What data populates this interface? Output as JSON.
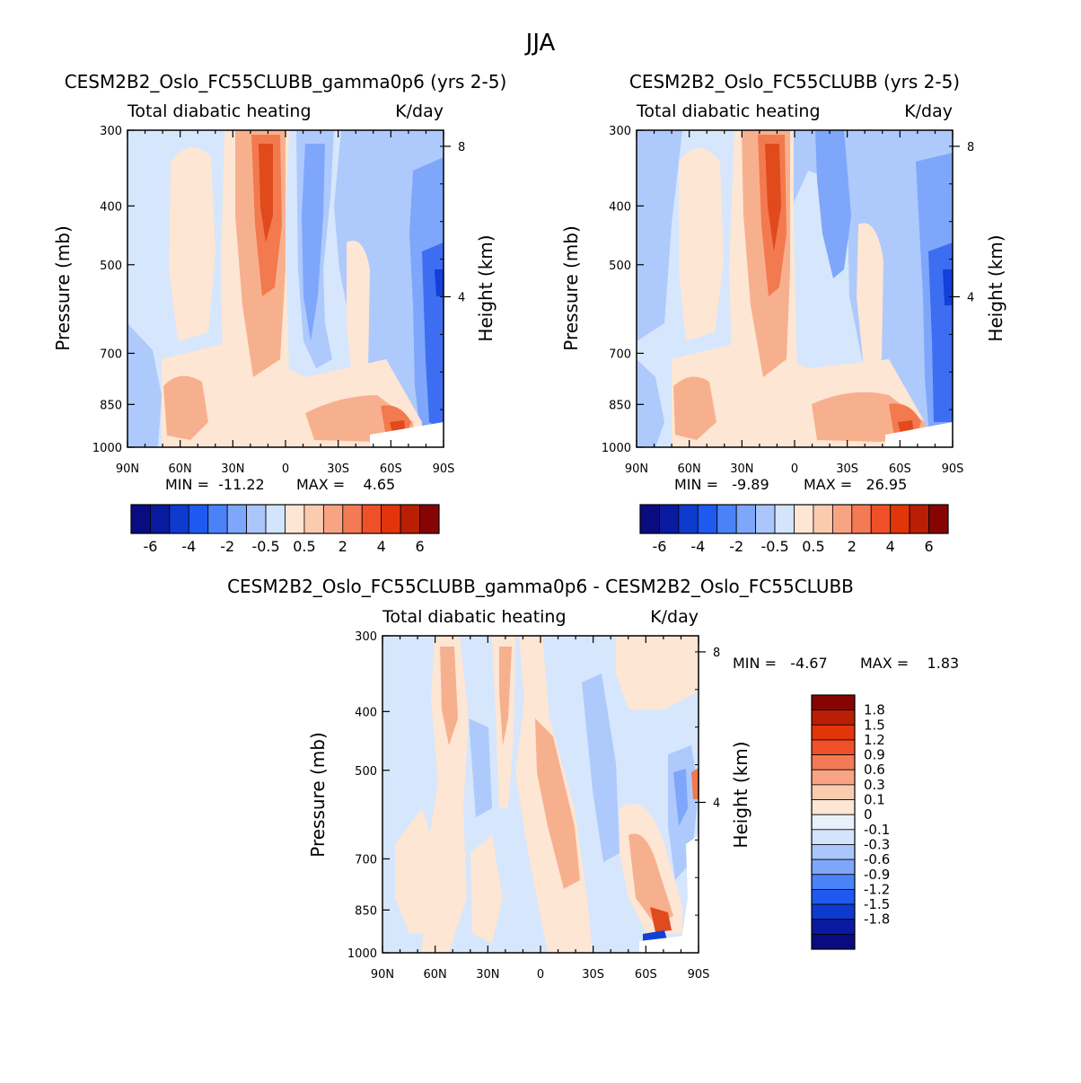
{
  "figure_title": "JJA",
  "chart_data": [
    {
      "type": "heatmap",
      "title": "CESM2B2_Oslo_FC55CLUBB_gamma0p6 (yrs 2-5)",
      "subtitle_left": "Total diabatic heating",
      "subtitle_right": "K/day",
      "xlabel": "",
      "ylabel": "Pressure (mb)",
      "y2label": "Height (km)",
      "xticks": [
        "90N",
        "60N",
        "30N",
        "0",
        "30S",
        "60S",
        "90S"
      ],
      "yticks": [
        "300",
        "400",
        "500",
        "700",
        "850",
        "1000"
      ],
      "y2ticks": [
        "8",
        "4"
      ],
      "xlim": [
        90,
        -90
      ],
      "ylim": [
        1000,
        300
      ],
      "min_text": "MIN =  -11.22",
      "max_text": "MAX =    4.65",
      "min": -11.22,
      "max": 4.65,
      "colorbar_orientation": "horizontal",
      "colorbar_labels": [
        "-6",
        "-4",
        "-2",
        "-0.5",
        "0.5",
        "2",
        "4",
        "6"
      ]
    },
    {
      "type": "heatmap",
      "title": "CESM2B2_Oslo_FC55CLUBB (yrs 2-5)",
      "subtitle_left": "Total diabatic heating",
      "subtitle_right": "K/day",
      "xlabel": "",
      "ylabel": "Pressure (mb)",
      "y2label": "Height (km)",
      "xticks": [
        "90N",
        "60N",
        "30N",
        "0",
        "30S",
        "60S",
        "90S"
      ],
      "yticks": [
        "300",
        "400",
        "500",
        "700",
        "850",
        "1000"
      ],
      "y2ticks": [
        "8",
        "4"
      ],
      "xlim": [
        90,
        -90
      ],
      "ylim": [
        1000,
        300
      ],
      "min_text": "MIN =   -9.89",
      "max_text": "MAX =   26.95",
      "min": -9.89,
      "max": 26.95,
      "colorbar_orientation": "horizontal",
      "colorbar_labels": [
        "-6",
        "-4",
        "-2",
        "-0.5",
        "0.5",
        "2",
        "4",
        "6"
      ]
    },
    {
      "type": "heatmap",
      "title": "CESM2B2_Oslo_FC55CLUBB_gamma0p6 - CESM2B2_Oslo_FC55CLUBB",
      "subtitle_left": "Total diabatic heating",
      "subtitle_right": "K/day",
      "xlabel": "",
      "ylabel": "Pressure (mb)",
      "y2label": "Height (km)",
      "xticks": [
        "90N",
        "60N",
        "30N",
        "0",
        "30S",
        "60S",
        "90S"
      ],
      "yticks": [
        "300",
        "400",
        "500",
        "700",
        "850",
        "1000"
      ],
      "y2ticks": [
        "8",
        "4"
      ],
      "xlim": [
        90,
        -90
      ],
      "ylim": [
        1000,
        300
      ],
      "min_text": "MIN =   -4.67",
      "max_text": "MAX =    1.83",
      "min": -4.67,
      "max": 1.83,
      "colorbar_orientation": "vertical",
      "colorbar_labels": [
        "1.8",
        "1.5",
        "1.2",
        "0.9",
        "0.6",
        "0.3",
        "0.1",
        "0",
        "-0.1",
        "-0.3",
        "-0.6",
        "-0.9",
        "-1.2",
        "-1.5",
        "-1.8"
      ]
    }
  ],
  "colors": {
    "abs_scale": [
      "#0b0b80",
      "#0a1aa0",
      "#0f3ad0",
      "#1e5af0",
      "#4a82f8",
      "#7ea6fa",
      "#aac6fc",
      "#d4e4fd",
      "#fde6d4",
      "#fbcbb0",
      "#f8a484",
      "#f47a56",
      "#ef5028",
      "#e2360a",
      "#b81f05",
      "#860404"
    ],
    "diff_scale": [
      "#0b0b80",
      "#0a1aa0",
      "#0f3ad0",
      "#1e5af0",
      "#4a82f8",
      "#7ea6fa",
      "#aac6fc",
      "#d4e4fd",
      "#e8f0fa",
      "#fde6d4",
      "#fbcbb0",
      "#f8a484",
      "#f47a56",
      "#ef5028",
      "#e2360a",
      "#b81f05",
      "#860404"
    ],
    "light_blue": "#d6e6fc",
    "mid_blue": "#aec9fb",
    "blue": "#7ea6fa",
    "strong_blue": "#3d6ef2",
    "deep_blue": "#1240d8",
    "light_orange": "#fde6d4",
    "orange": "#f7b08e",
    "deep_orange": "#f27a4e",
    "red": "#e04a1c",
    "white": "#ffffff"
  }
}
